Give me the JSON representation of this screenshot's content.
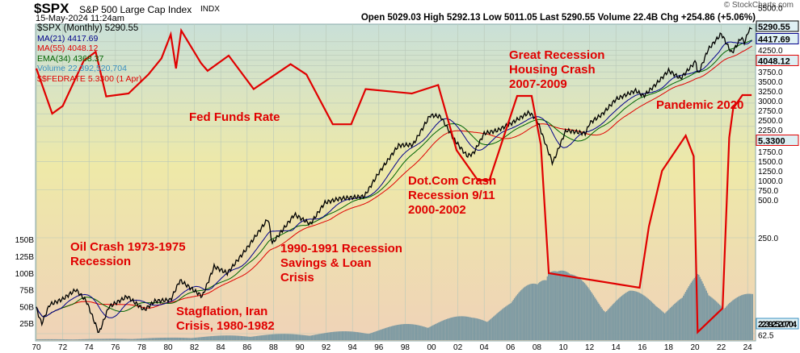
{
  "header": {
    "symbol": "$SPX",
    "name": "S&P 500 Large Cap Index",
    "exchange": "INDX",
    "date": "15-May-2024 11:24am",
    "stats": "Open 5029.03  High 5292.13  Low 5011.05  Last 5290.55  Volume 22.4B  Chg +254.86 (+5.06%)",
    "watermark": "© StockCharts.com"
  },
  "legend": [
    {
      "text": "$SPX (Monthly) 5290.55",
      "color": "#000000"
    },
    {
      "text": "MA(21) 4417.69",
      "color": "#00008b"
    },
    {
      "text": "MA(55) 4048.12",
      "color": "#e00000"
    },
    {
      "text": "EMA(34) 4368.37",
      "color": "#006400"
    },
    {
      "text": "Volume 22,392,520,704",
      "color": "#3a8fc0"
    },
    {
      "text": "$$FEDRATE 5.3300 (1 Apr)",
      "color": "#e00000"
    }
  ],
  "annotations": {
    "fed": "Fed Funds Rate",
    "gr1": "Great Recession",
    "gr2": "Housing Crash",
    "gr3": "2007-2009",
    "pan": "Pandemic 2020",
    "dc1": "Dot.Com Crash",
    "dc2": "Recession 9/11",
    "dc3": "2000-2002",
    "oil1": "Oil Crash 1973-1975",
    "oil2": "Recession",
    "sl1": "1990-1991 Recession",
    "sl2": "Savings & Loan",
    "sl3": "Crisis",
    "st1": "Stagflation, Iran",
    "st2": "Crisis, 1980-1982"
  },
  "chart_data": {
    "type": "line",
    "title": "$SPX (Monthly)",
    "yscale": "log",
    "x_ticks": [
      "70",
      "72",
      "74",
      "76",
      "78",
      "80",
      "82",
      "84",
      "86",
      "88",
      "90",
      "92",
      "94",
      "96",
      "98",
      "00",
      "02",
      "04",
      "06",
      "08",
      "10",
      "12",
      "14",
      "16",
      "18",
      "20",
      "22",
      "24"
    ],
    "y_ticks_right": [
      "5500.0",
      "4250.0",
      "3750.0",
      "3500.0",
      "3250.0",
      "3000.0",
      "2750.0",
      "2500.0",
      "2250.0",
      "1750.0",
      "1500.0",
      "1250.0",
      "1000.0",
      "750.0",
      "500.0",
      "250.0",
      "62.5"
    ],
    "y_ticks_left_volume": [
      "150B",
      "125B",
      "100B",
      "75B",
      "50B",
      "25B"
    ],
    "price_labels": {
      "spx": "5290.55",
      "ma21": "4417.69",
      "ma55": "4048.12",
      "fed": "5.3300",
      "volume": "22392520704"
    },
    "spx": [
      [
        1970,
        90
      ],
      [
        1970.4,
        72
      ],
      [
        1971,
        95
      ],
      [
        1972,
        103
      ],
      [
        1973,
        118
      ],
      [
        1973.8,
        100
      ],
      [
        1974.75,
        63
      ],
      [
        1975.5,
        92
      ],
      [
        1976.9,
        107
      ],
      [
        1978.2,
        88
      ],
      [
        1979,
        100
      ],
      [
        1980.2,
        102
      ],
      [
        1980.9,
        135
      ],
      [
        1982.6,
        107
      ],
      [
        1983.5,
        165
      ],
      [
        1984.5,
        150
      ],
      [
        1985.9,
        210
      ],
      [
        1987.6,
        330
      ],
      [
        1987.9,
        230
      ],
      [
        1989.6,
        350
      ],
      [
        1990.8,
        305
      ],
      [
        1991.9,
        415
      ],
      [
        1993,
        440
      ],
      [
        1994.9,
        455
      ],
      [
        1996,
        640
      ],
      [
        1997.5,
        950
      ],
      [
        1998.6,
        960
      ],
      [
        1999.9,
        1470
      ],
      [
        2000.7,
        1440
      ],
      [
        2001.7,
        1040
      ],
      [
        2002.7,
        815
      ],
      [
        2003.2,
        850
      ],
      [
        2004,
        1130
      ],
      [
        2005,
        1180
      ],
      [
        2006,
        1300
      ],
      [
        2007.4,
        1530
      ],
      [
        2008,
        1380
      ],
      [
        2008.8,
        900
      ],
      [
        2009.2,
        735
      ],
      [
        2010.2,
        1180
      ],
      [
        2011.7,
        1130
      ],
      [
        2012,
        1310
      ],
      [
        2013,
        1500
      ],
      [
        2014,
        1850
      ],
      [
        2015.5,
        2100
      ],
      [
        2016.1,
        1940
      ],
      [
        2017,
        2280
      ],
      [
        2018,
        2800
      ],
      [
        2018.9,
        2500
      ],
      [
        2020.1,
        3230
      ],
      [
        2020.2,
        2600
      ],
      [
        2021,
        3800
      ],
      [
        2022,
        4770
      ],
      [
        2022.8,
        3600
      ],
      [
        2023.5,
        4500
      ],
      [
        2023.8,
        4190
      ],
      [
        2024,
        4850
      ],
      [
        2024.35,
        5290.55
      ]
    ],
    "fedrate": [
      [
        1970,
        9
      ],
      [
        1971.2,
        3.7
      ],
      [
        1972,
        4.3
      ],
      [
        1973.6,
        10.5
      ],
      [
        1974.5,
        12.5
      ],
      [
        1975.3,
        5.2
      ],
      [
        1977,
        5.5
      ],
      [
        1978.5,
        8
      ],
      [
        1979.5,
        11
      ],
      [
        1980.2,
        17.6
      ],
      [
        1980.6,
        9
      ],
      [
        1981,
        19
      ],
      [
        1982.5,
        10
      ],
      [
        1983,
        8.6
      ],
      [
        1984.6,
        11.6
      ],
      [
        1986.5,
        6
      ],
      [
        1989.3,
        9.8
      ],
      [
        1990.5,
        8
      ],
      [
        1992.5,
        3
      ],
      [
        1993.9,
        3
      ],
      [
        1995,
        6
      ],
      [
        1998.5,
        5.5
      ],
      [
        2000.5,
        6.5
      ],
      [
        2001.9,
        1.8
      ],
      [
        2003.5,
        1
      ],
      [
        2004.4,
        1
      ],
      [
        2006.5,
        5.25
      ],
      [
        2007.6,
        5.25
      ],
      [
        2008.3,
        2
      ],
      [
        2008.9,
        0.16
      ],
      [
        2015.8,
        0.12
      ],
      [
        2016.5,
        0.4
      ],
      [
        2017.5,
        1.2
      ],
      [
        2019.3,
        2.4
      ],
      [
        2019.9,
        1.6
      ],
      [
        2020.2,
        0.05
      ],
      [
        2022.1,
        0.08
      ],
      [
        2022.6,
        2.3
      ],
      [
        2022.9,
        4.1
      ],
      [
        2023.6,
        5.33
      ],
      [
        2024.3,
        5.33
      ]
    ],
    "volume_B": [
      [
        1970,
        1
      ],
      [
        1975,
        1.5
      ],
      [
        1980,
        3
      ],
      [
        1985,
        6
      ],
      [
        1990,
        8
      ],
      [
        1995,
        12
      ],
      [
        2000,
        25
      ],
      [
        2003,
        30
      ],
      [
        2006,
        45
      ],
      [
        2008,
        85
      ],
      [
        2008.8,
        125
      ],
      [
        2009.5,
        100
      ],
      [
        2010.5,
        80
      ],
      [
        2011.7,
        70
      ],
      [
        2013,
        55
      ],
      [
        2015,
        60
      ],
      [
        2017,
        52
      ],
      [
        2019,
        55
      ],
      [
        2020.2,
        80
      ],
      [
        2021,
        60
      ],
      [
        2022.5,
        62
      ],
      [
        2024.3,
        55
      ]
    ]
  }
}
